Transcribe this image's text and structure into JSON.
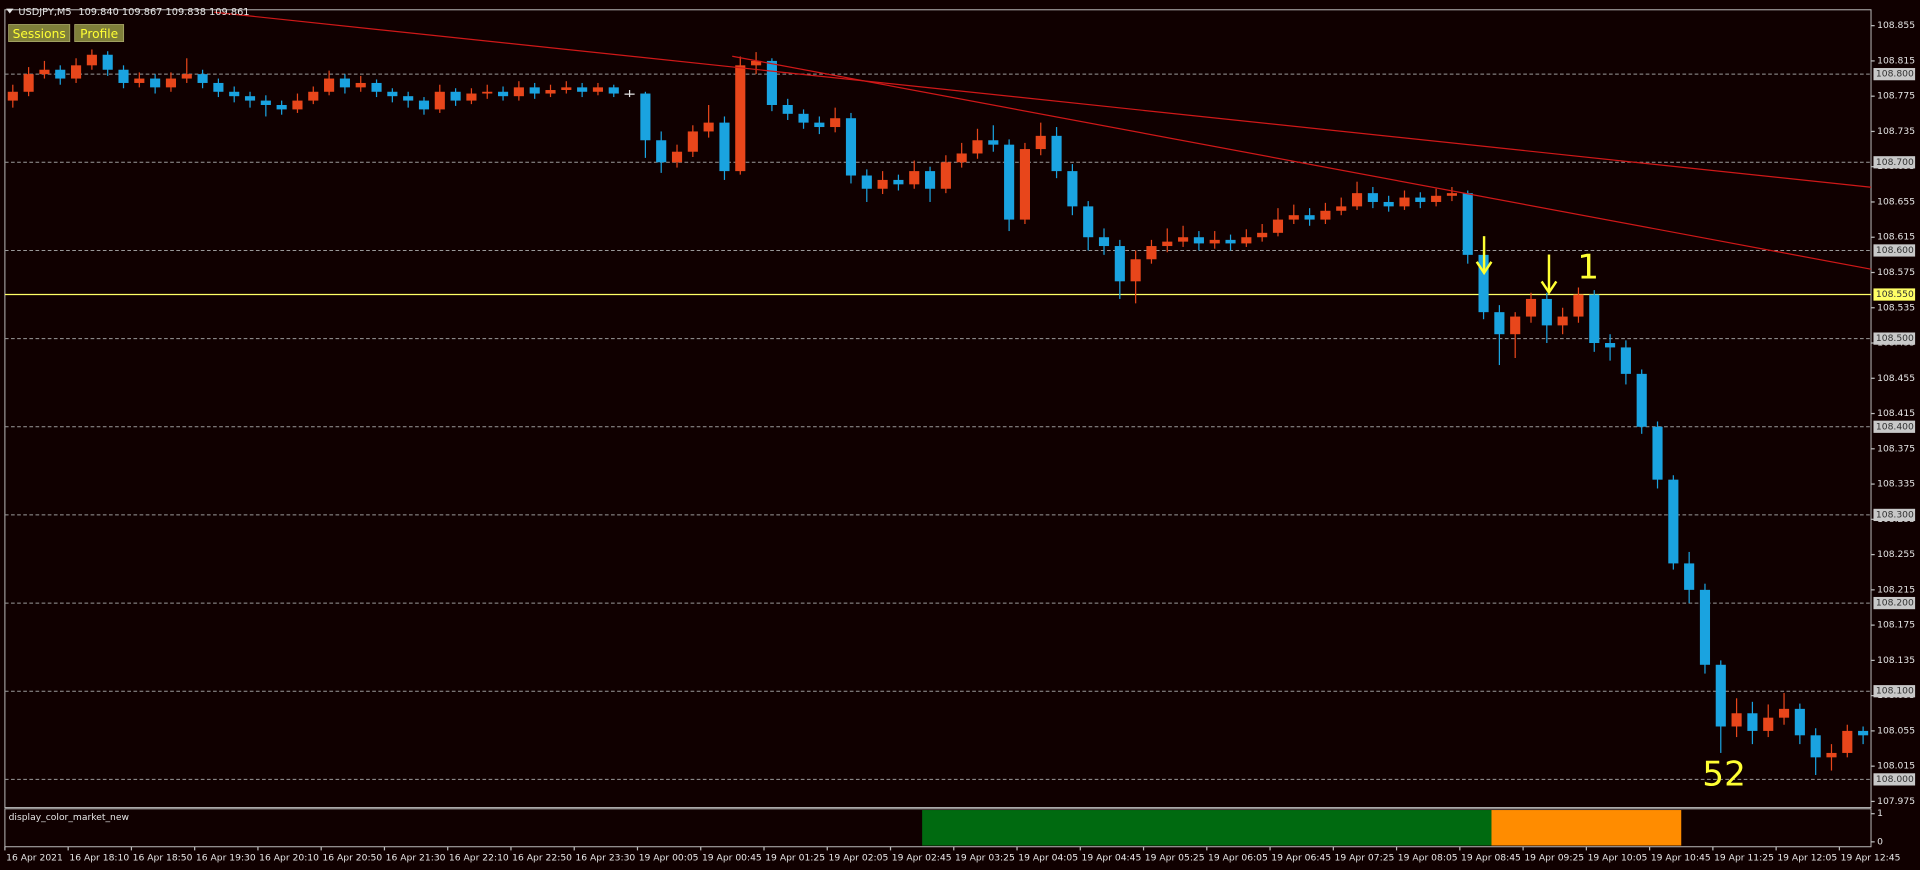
{
  "header": {
    "symbol": "USDJPY,M5",
    "ohlc": "109.840 109.867 109.838 109.861"
  },
  "buttons": [
    "Sessions",
    "Profile"
  ],
  "chart_data": {
    "type": "candlestick",
    "up_color": "#e8461b",
    "down_color": "#1aa3e0",
    "ylim": [
      107.968,
      108.873
    ],
    "yticks": [
      108.855,
      108.815,
      108.775,
      108.735,
      108.695,
      108.655,
      108.615,
      108.575,
      108.535,
      108.495,
      108.455,
      108.415,
      108.375,
      108.335,
      108.295,
      108.255,
      108.215,
      108.175,
      108.135,
      108.095,
      108.055,
      108.015,
      107.975
    ],
    "levels": [
      {
        "value": 108.8,
        "label": "108.800"
      },
      {
        "value": 108.7,
        "label": "108.700"
      },
      {
        "value": 108.6,
        "label": "108.600"
      },
      {
        "value": 108.5,
        "label": "108.500"
      },
      {
        "value": 108.4,
        "label": "108.400"
      },
      {
        "value": 108.3,
        "label": "108.300"
      },
      {
        "value": 108.2,
        "label": "108.200"
      },
      {
        "value": 108.1,
        "label": "108.100"
      },
      {
        "value": 108.0,
        "label": "108.000"
      }
    ],
    "highlight_level": {
      "value": 108.55,
      "label": "108.550",
      "color": "#ffff66"
    },
    "xtick_labels": [
      "16 Apr 2021",
      "16 Apr 18:10",
      "16 Apr 18:50",
      "16 Apr 19:30",
      "16 Apr 20:10",
      "16 Apr 20:50",
      "16 Apr 21:30",
      "16 Apr 22:10",
      "16 Apr 22:50",
      "16 Apr 23:30",
      "19 Apr 00:05",
      "19 Apr 00:45",
      "19 Apr 01:25",
      "19 Apr 02:05",
      "19 Apr 02:45",
      "19 Apr 03:25",
      "19 Apr 04:05",
      "19 Apr 04:45",
      "19 Apr 05:25",
      "19 Apr 06:05",
      "19 Apr 06:45",
      "19 Apr 07:25",
      "19 Apr 08:05",
      "19 Apr 08:45",
      "19 Apr 09:25",
      "19 Apr 10:05",
      "19 Apr 10:45",
      "19 Apr 11:25",
      "19 Apr 12:05",
      "19 Apr 12:45"
    ],
    "annotations": [
      "1",
      "52"
    ],
    "candles": [
      [
        108.77,
        108.788,
        108.762,
        108.78
      ],
      [
        108.78,
        108.808,
        108.775,
        108.8
      ],
      [
        108.8,
        108.815,
        108.795,
        108.805
      ],
      [
        108.805,
        108.81,
        108.788,
        108.795
      ],
      [
        108.795,
        108.818,
        108.79,
        108.81
      ],
      [
        108.81,
        108.828,
        108.805,
        108.822
      ],
      [
        108.822,
        108.826,
        108.798,
        108.805
      ],
      [
        108.805,
        108.81,
        108.784,
        108.79
      ],
      [
        108.79,
        108.802,
        108.785,
        108.795
      ],
      [
        108.795,
        108.8,
        108.778,
        108.785
      ],
      [
        108.785,
        108.802,
        108.78,
        108.795
      ],
      [
        108.795,
        108.818,
        108.79,
        108.8
      ],
      [
        108.8,
        108.805,
        108.784,
        108.79
      ],
      [
        108.79,
        108.795,
        108.774,
        108.78
      ],
      [
        108.78,
        108.786,
        108.768,
        108.775
      ],
      [
        108.775,
        108.78,
        108.762,
        108.77
      ],
      [
        108.77,
        108.776,
        108.752,
        108.765
      ],
      [
        108.765,
        108.77,
        108.754,
        108.76
      ],
      [
        108.76,
        108.778,
        108.756,
        108.77
      ],
      [
        108.77,
        108.786,
        108.766,
        108.78
      ],
      [
        108.78,
        108.804,
        108.776,
        108.795
      ],
      [
        108.795,
        108.8,
        108.778,
        108.785
      ],
      [
        108.785,
        108.798,
        108.78,
        108.79
      ],
      [
        108.79,
        108.794,
        108.774,
        108.78
      ],
      [
        108.78,
        108.784,
        108.768,
        108.775
      ],
      [
        108.775,
        108.78,
        108.762,
        108.77
      ],
      [
        108.77,
        108.774,
        108.754,
        108.76
      ],
      [
        108.76,
        108.788,
        108.756,
        108.78
      ],
      [
        108.78,
        108.784,
        108.764,
        108.77
      ],
      [
        108.77,
        108.784,
        108.766,
        108.778
      ],
      [
        108.778,
        108.788,
        108.772,
        108.78
      ],
      [
        108.78,
        108.786,
        108.77,
        108.775
      ],
      [
        108.775,
        108.792,
        108.77,
        108.785
      ],
      [
        108.785,
        108.79,
        108.772,
        108.778
      ],
      [
        108.778,
        108.788,
        108.774,
        108.782
      ],
      [
        108.782,
        108.792,
        108.778,
        108.785
      ],
      [
        108.785,
        108.79,
        108.774,
        108.78
      ],
      [
        108.78,
        108.79,
        108.776,
        108.785
      ],
      [
        108.785,
        108.788,
        108.774,
        108.778
      ],
      [
        108.778,
        108.782,
        108.774,
        108.778
      ],
      [
        108.778,
        108.78,
        108.705,
        108.725
      ],
      [
        108.725,
        108.735,
        108.688,
        108.7
      ],
      [
        108.7,
        108.72,
        108.694,
        108.712
      ],
      [
        108.712,
        108.742,
        108.706,
        108.735
      ],
      [
        108.735,
        108.765,
        108.728,
        108.745
      ],
      [
        108.745,
        108.752,
        108.68,
        108.69
      ],
      [
        108.69,
        108.82,
        108.686,
        108.81
      ],
      [
        108.81,
        108.825,
        108.8,
        108.815
      ],
      [
        108.815,
        108.818,
        108.758,
        108.765
      ],
      [
        108.765,
        108.772,
        108.748,
        108.755
      ],
      [
        108.755,
        108.76,
        108.738,
        108.745
      ],
      [
        108.745,
        108.752,
        108.732,
        108.74
      ],
      [
        108.74,
        108.762,
        108.734,
        108.75
      ],
      [
        108.75,
        108.756,
        108.676,
        108.685
      ],
      [
        108.685,
        108.692,
        108.655,
        108.67
      ],
      [
        108.67,
        108.69,
        108.664,
        108.68
      ],
      [
        108.68,
        108.686,
        108.668,
        108.675
      ],
      [
        108.675,
        108.702,
        108.67,
        108.69
      ],
      [
        108.69,
        108.695,
        108.655,
        108.67
      ],
      [
        108.67,
        108.708,
        108.665,
        108.7
      ],
      [
        108.7,
        108.722,
        108.694,
        108.71
      ],
      [
        108.71,
        108.738,
        108.704,
        108.725
      ],
      [
        108.725,
        108.742,
        108.712,
        108.72
      ],
      [
        108.72,
        108.726,
        108.622,
        108.635
      ],
      [
        108.635,
        108.722,
        108.63,
        108.715
      ],
      [
        108.715,
        108.745,
        108.708,
        108.73
      ],
      [
        108.73,
        108.74,
        108.682,
        108.69
      ],
      [
        108.69,
        108.698,
        108.64,
        108.65
      ],
      [
        108.65,
        108.656,
        108.6,
        108.615
      ],
      [
        108.615,
        108.625,
        108.595,
        108.605
      ],
      [
        108.605,
        108.612,
        108.545,
        108.565
      ],
      [
        108.565,
        108.6,
        108.54,
        108.59
      ],
      [
        108.59,
        108.612,
        108.585,
        108.605
      ],
      [
        108.605,
        108.625,
        108.598,
        108.61
      ],
      [
        108.61,
        108.628,
        108.604,
        108.615
      ],
      [
        108.615,
        108.622,
        108.6,
        108.608
      ],
      [
        108.608,
        108.622,
        108.602,
        108.612
      ],
      [
        108.612,
        108.618,
        108.6,
        108.608
      ],
      [
        108.608,
        108.624,
        108.604,
        108.615
      ],
      [
        108.615,
        108.63,
        108.61,
        108.62
      ],
      [
        108.62,
        108.648,
        108.616,
        108.635
      ],
      [
        108.635,
        108.652,
        108.63,
        108.64
      ],
      [
        108.64,
        108.648,
        108.628,
        108.635
      ],
      [
        108.635,
        108.654,
        108.63,
        108.645
      ],
      [
        108.645,
        108.66,
        108.64,
        108.65
      ],
      [
        108.65,
        108.678,
        108.646,
        108.665
      ],
      [
        108.665,
        108.672,
        108.648,
        108.655
      ],
      [
        108.655,
        108.662,
        108.644,
        108.65
      ],
      [
        108.65,
        108.668,
        108.646,
        108.66
      ],
      [
        108.66,
        108.666,
        108.648,
        108.655
      ],
      [
        108.655,
        108.67,
        108.65,
        108.662
      ],
      [
        108.662,
        108.672,
        108.656,
        108.665
      ],
      [
        108.665,
        108.668,
        108.585,
        108.595
      ],
      [
        108.595,
        108.6,
        108.522,
        108.53
      ],
      [
        108.53,
        108.538,
        108.47,
        108.505
      ],
      [
        108.505,
        108.53,
        108.478,
        108.525
      ],
      [
        108.525,
        108.552,
        108.518,
        108.545
      ],
      [
        108.545,
        108.552,
        108.495,
        108.515
      ],
      [
        108.515,
        108.535,
        108.505,
        108.525
      ],
      [
        108.525,
        108.558,
        108.518,
        108.55
      ],
      [
        108.55,
        108.555,
        108.485,
        108.495
      ],
      [
        108.495,
        108.505,
        108.475,
        108.49
      ],
      [
        108.49,
        108.498,
        108.448,
        108.46
      ],
      [
        108.46,
        108.465,
        108.392,
        108.4
      ],
      [
        108.4,
        108.406,
        108.33,
        108.34
      ],
      [
        108.34,
        108.345,
        108.238,
        108.245
      ],
      [
        108.245,
        108.258,
        108.2,
        108.215
      ],
      [
        108.215,
        108.222,
        108.12,
        108.13
      ],
      [
        108.13,
        108.135,
        108.03,
        108.06
      ],
      [
        108.06,
        108.092,
        108.048,
        108.075
      ],
      [
        108.075,
        108.088,
        108.04,
        108.055
      ],
      [
        108.055,
        108.085,
        108.048,
        108.07
      ],
      [
        108.07,
        108.098,
        108.062,
        108.08
      ],
      [
        108.08,
        108.086,
        108.04,
        108.05
      ],
      [
        108.05,
        108.058,
        108.005,
        108.025
      ],
      [
        108.025,
        108.04,
        108.01,
        108.03
      ],
      [
        108.03,
        108.062,
        108.025,
        108.055
      ],
      [
        108.055,
        108.06,
        108.04,
        108.05
      ]
    ]
  },
  "indicator": {
    "title": "display_color_market_new",
    "yticks": [
      1,
      0
    ],
    "segments": [
      {
        "color": "#006a10",
        "from": 58,
        "to": 94
      },
      {
        "color": "#ff8c00",
        "from": 94,
        "to": 106
      }
    ]
  }
}
